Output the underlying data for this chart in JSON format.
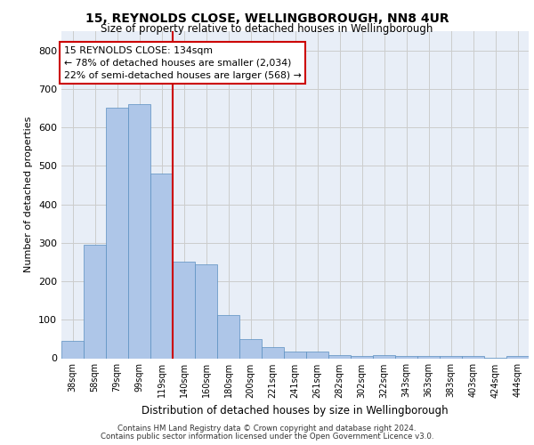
{
  "title1": "15, REYNOLDS CLOSE, WELLINGBOROUGH, NN8 4UR",
  "title2": "Size of property relative to detached houses in Wellingborough",
  "xlabel": "Distribution of detached houses by size in Wellingborough",
  "ylabel": "Number of detached properties",
  "categories": [
    "38sqm",
    "58sqm",
    "79sqm",
    "99sqm",
    "119sqm",
    "140sqm",
    "160sqm",
    "180sqm",
    "200sqm",
    "221sqm",
    "241sqm",
    "261sqm",
    "282sqm",
    "302sqm",
    "322sqm",
    "343sqm",
    "363sqm",
    "383sqm",
    "403sqm",
    "424sqm",
    "444sqm"
  ],
  "values": [
    45,
    295,
    650,
    660,
    480,
    250,
    245,
    113,
    50,
    28,
    17,
    17,
    8,
    5,
    8,
    5,
    5,
    5,
    5,
    2,
    5
  ],
  "bar_color": "#aec6e8",
  "bar_edge_color": "#5a8fc0",
  "vline_color": "#cc0000",
  "vline_pos": 4.5,
  "annotation_text": "15 REYNOLDS CLOSE: 134sqm\n← 78% of detached houses are smaller (2,034)\n22% of semi-detached houses are larger (568) →",
  "annotation_box_color": "#ffffff",
  "annotation_box_edge": "#cc0000",
  "ylim": [
    0,
    850
  ],
  "yticks": [
    0,
    100,
    200,
    300,
    400,
    500,
    600,
    700,
    800
  ],
  "grid_color": "#cccccc",
  "bg_color": "#e8eef7",
  "footer1": "Contains HM Land Registry data © Crown copyright and database right 2024.",
  "footer2": "Contains public sector information licensed under the Open Government Licence v3.0."
}
